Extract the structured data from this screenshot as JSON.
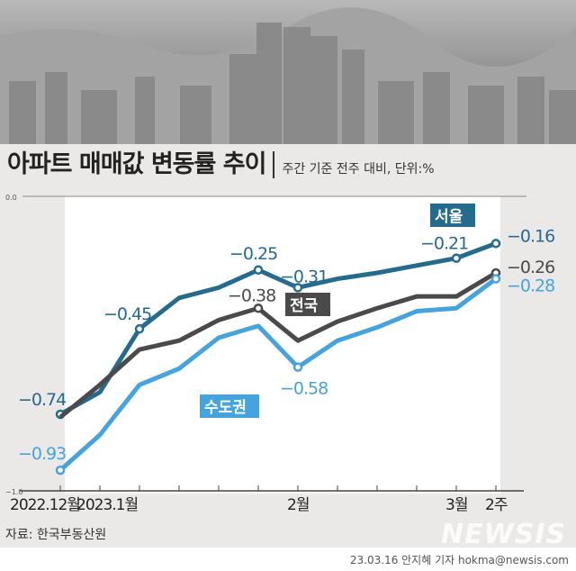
{
  "title": "아파트 매매값 변동률 추이",
  "subtitle": "주간 기준 전주 대비, 단위:%",
  "source": "자료: 한국부동산원",
  "credit": "23.03.16 안지혜 기자 hokma@newsis.com",
  "logo": "NEWSIS",
  "chart_data": {
    "type": "line",
    "title": "아파트 매매값 변동률 추이",
    "ylim": [
      -1.0,
      0.0
    ],
    "yticks": [
      "0.0",
      "-0.2",
      "-0.4",
      "-0.6",
      "-0.8",
      "-1.0"
    ],
    "xtick_labels": [
      "2022.12월",
      "2023.1월",
      "",
      "",
      "",
      "",
      "2월",
      "",
      "",
      "",
      "3월",
      "2주"
    ],
    "series": [
      {
        "name": "서울",
        "color": "#256b8e",
        "values": [
          -0.74,
          -0.665,
          -0.45,
          -0.345,
          -0.31,
          -0.25,
          -0.31,
          -0.28,
          -0.26,
          -0.235,
          -0.21,
          -0.16
        ],
        "labels": [
          {
            "i": 0,
            "text": "-0.74"
          },
          {
            "i": 2,
            "text": "-0.45"
          },
          {
            "i": 5,
            "text": "-0.25"
          },
          {
            "i": 6,
            "text": "-0.31"
          },
          {
            "i": 10,
            "text": "-0.21"
          },
          {
            "i": 11,
            "text": "-0.16"
          }
        ]
      },
      {
        "name": "전국",
        "color": "#4a4a4a",
        "values": [
          -0.75,
          -0.64,
          -0.52,
          -0.49,
          -0.42,
          -0.38,
          -0.49,
          -0.425,
          -0.38,
          -0.34,
          -0.34,
          -0.26
        ],
        "labels": [
          {
            "i": 5,
            "text": "-0.38"
          },
          {
            "i": 11,
            "text": "-0.26"
          }
        ]
      },
      {
        "name": "수도권",
        "color": "#45a3de",
        "values": [
          -0.93,
          -0.81,
          -0.64,
          -0.585,
          -0.48,
          -0.44,
          -0.58,
          -0.49,
          -0.445,
          -0.39,
          -0.38,
          -0.28
        ],
        "labels": [
          {
            "i": 0,
            "text": "-0.93"
          },
          {
            "i": 6,
            "text": "-0.58"
          },
          {
            "i": 11,
            "text": "-0.28"
          }
        ]
      }
    ]
  }
}
